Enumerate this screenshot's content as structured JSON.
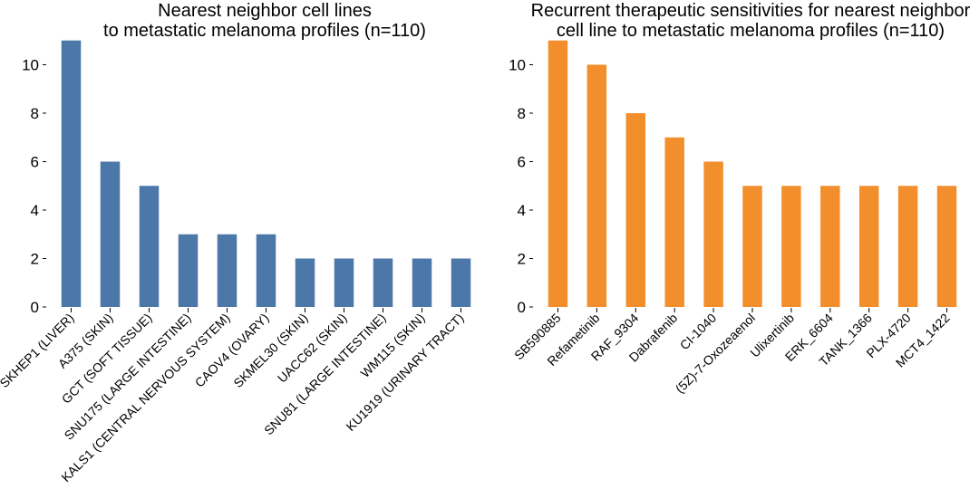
{
  "chart_data": [
    {
      "type": "bar",
      "title": "Nearest neighbor cell lines\nto metastatic melanoma profiles (n=110)",
      "xlabel": "",
      "ylabel": "",
      "categories": [
        "SKHEP1 (LIVER)",
        "A375 (SKIN)",
        "GCT (SOFT TISSUE)",
        "SNU175 (LARGE INTESTINE)",
        "KALS1 (CENTRAL NERVOUS SYSTEM)",
        "CAOV4 (OVARY)",
        "SKMEL30 (SKIN)",
        "UACC62 (SKIN)",
        "SNU81 (LARGE INTESTINE)",
        "WM115 (SKIN)",
        "KU1919 (URINARY TRACT)"
      ],
      "values": [
        11,
        6,
        5,
        3,
        3,
        3,
        2,
        2,
        2,
        2,
        2
      ],
      "ylim": [
        0,
        11.55
      ],
      "yticks": [
        0,
        2,
        4,
        6,
        8,
        10
      ],
      "color": "#4b78a8",
      "grid": false
    },
    {
      "type": "bar",
      "title": "Recurrent therapeutic sensitivities for nearest neighbor\ncell line to metastatic melanoma profiles (n=110)",
      "xlabel": "",
      "ylabel": "",
      "categories": [
        "SB590885",
        "Refametinib",
        "RAF_9304",
        "Dabrafenib",
        "CI-1040",
        "(5Z)-7-Oxozeaenol",
        "Ulixertinib",
        "ERK_6604",
        "TANK_1366",
        "PLX-4720",
        "MCT4_1422"
      ],
      "values": [
        11,
        10,
        8,
        7,
        6,
        5,
        5,
        5,
        5,
        5,
        5
      ],
      "ylim": [
        0,
        11.55
      ],
      "yticks": [
        0,
        2,
        4,
        6,
        8,
        10
      ],
      "color": "#f28e2b",
      "grid": false
    }
  ]
}
